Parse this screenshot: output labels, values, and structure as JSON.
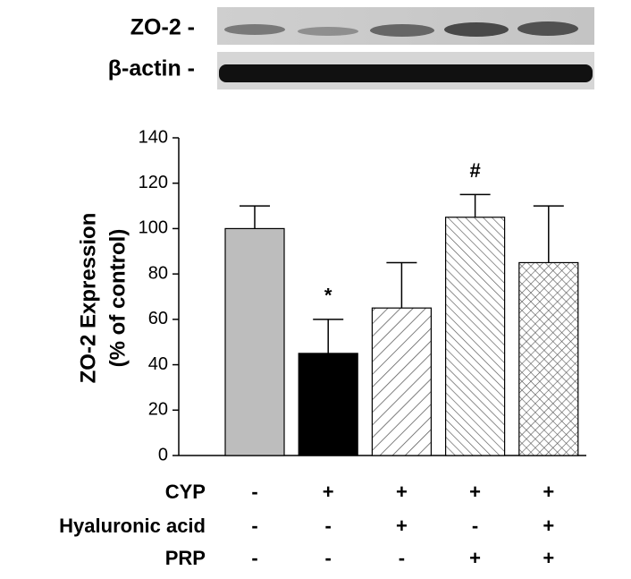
{
  "blot": {
    "rows": [
      "ZO-2 -",
      "β-actin -"
    ]
  },
  "chart_data": {
    "type": "bar",
    "y_label_lines": [
      "ZO-2 Expression",
      "(% of control)"
    ],
    "values": [
      100,
      45,
      65,
      105,
      85
    ],
    "errors": [
      10,
      15,
      20,
      10,
      25
    ],
    "colors": [
      "#bdbdbd",
      "#000000",
      "#555555",
      "#555555",
      "#555555"
    ],
    "patterns": [
      "solid",
      "solid",
      "diagonal-up",
      "diagonal-down",
      "crosshatch"
    ],
    "annotations": [
      null,
      "*",
      null,
      "#",
      null
    ],
    "ylim": [
      0,
      140
    ],
    "yticks": [
      0,
      20,
      40,
      60,
      80,
      100,
      120,
      140
    ],
    "conditions": [
      {
        "label": "CYP",
        "signs": [
          "-",
          "+",
          "+",
          "+",
          "+"
        ]
      },
      {
        "label": "Hyaluronic acid",
        "signs": [
          "-",
          "-",
          "+",
          "-",
          "+"
        ]
      },
      {
        "label": "PRP",
        "signs": [
          "-",
          "-",
          "-",
          "+",
          "+"
        ]
      }
    ]
  }
}
